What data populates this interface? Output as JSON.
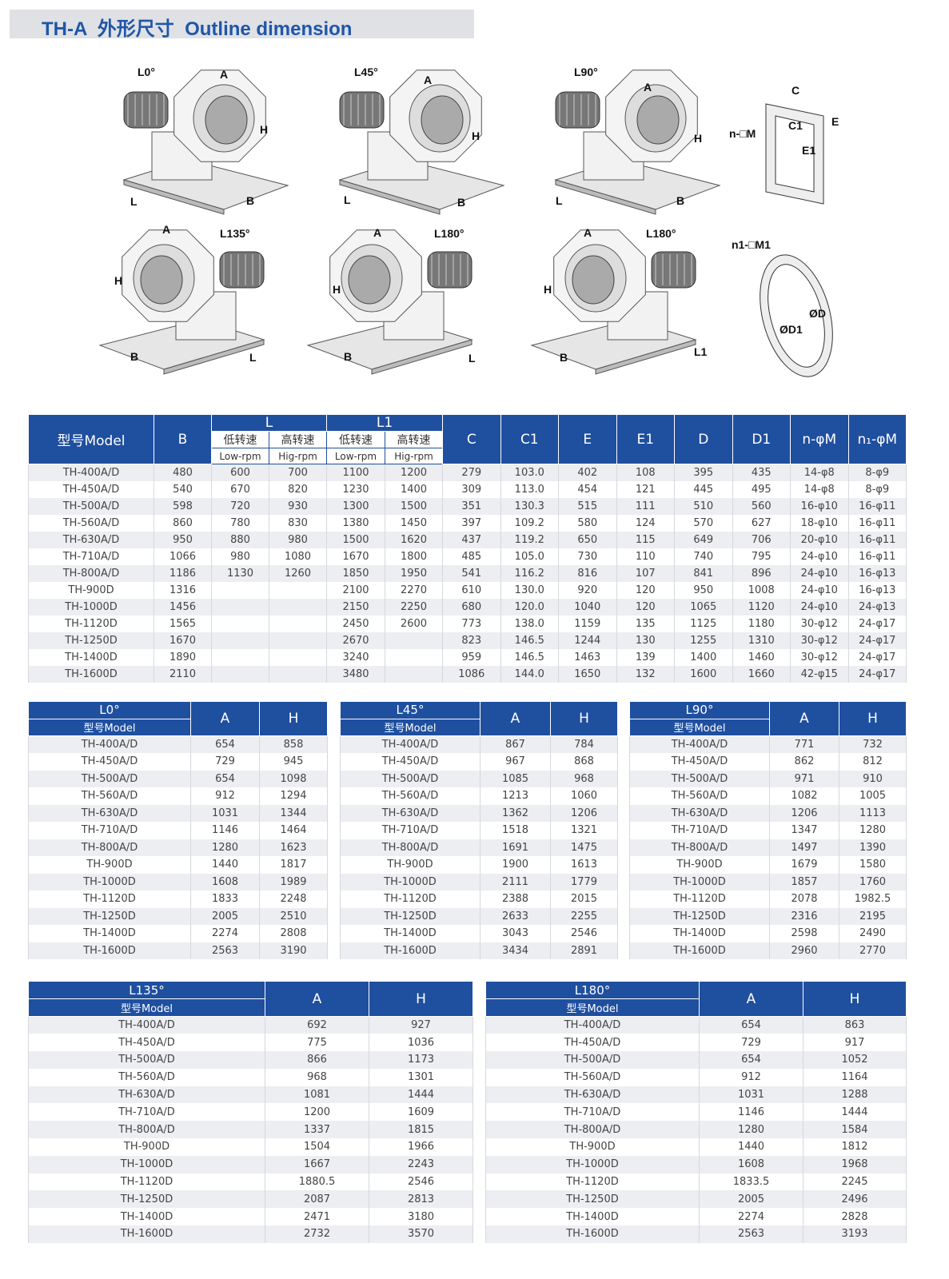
{
  "header": {
    "title": "TH-A  外形尺寸  Outline dimension"
  },
  "diagrams": [
    {
      "title": "L0°",
      "labels": [
        "A",
        "H",
        "L",
        "B"
      ]
    },
    {
      "title": "L45°",
      "labels": [
        "A",
        "H",
        "L",
        "B"
      ]
    },
    {
      "title": "L90°",
      "labels": [
        "A",
        "H",
        "L",
        "B"
      ]
    },
    {
      "labels": [
        "C",
        "E",
        "C1",
        "E1",
        "n-□M"
      ]
    },
    {
      "title": "L135°",
      "labels": [
        "A",
        "H",
        "B",
        "L"
      ]
    },
    {
      "title": "L180°",
      "labels": [
        "A",
        "H",
        "B",
        "L"
      ]
    },
    {
      "title": "L180°",
      "labels": [
        "A",
        "H",
        "B",
        "L1"
      ]
    },
    {
      "labels": [
        "n1-□M1",
        "ØD",
        "ØD1"
      ]
    }
  ],
  "main_table": {
    "header": {
      "model": "型号Model",
      "B": "B",
      "L": "L",
      "L1": "L1",
      "speed": [
        "低转速",
        "高转速",
        "低转速",
        "高转速"
      ],
      "rpm": [
        "Low-rpm",
        "Hig-rpm",
        "Low-rpm",
        "Hig-rpm"
      ],
      "cols": [
        "C",
        "C1",
        "E",
        "E1",
        "D",
        "D1",
        "n-φM",
        "n₁-φM"
      ]
    },
    "rows": [
      [
        "TH-400A/D",
        "480",
        "600",
        "700",
        "1100",
        "1200",
        "279",
        "103.0",
        "402",
        "108",
        "395",
        "435",
        "14-φ8",
        "8-φ9"
      ],
      [
        "TH-450A/D",
        "540",
        "670",
        "820",
        "1230",
        "1400",
        "309",
        "113.0",
        "454",
        "121",
        "445",
        "495",
        "14-φ8",
        "8-φ9"
      ],
      [
        "TH-500A/D",
        "598",
        "720",
        "930",
        "1300",
        "1500",
        "351",
        "130.3",
        "515",
        "111",
        "510",
        "560",
        "16-φ10",
        "16-φ11"
      ],
      [
        "TH-560A/D",
        "860",
        "780",
        "830",
        "1380",
        "1450",
        "397",
        "109.2",
        "580",
        "124",
        "570",
        "627",
        "18-φ10",
        "16-φ11"
      ],
      [
        "TH-630A/D",
        "950",
        "880",
        "980",
        "1500",
        "1620",
        "437",
        "119.2",
        "650",
        "115",
        "649",
        "706",
        "20-φ10",
        "16-φ11"
      ],
      [
        "TH-710A/D",
        "1066",
        "980",
        "1080",
        "1670",
        "1800",
        "485",
        "105.0",
        "730",
        "110",
        "740",
        "795",
        "24-φ10",
        "16-φ11"
      ],
      [
        "TH-800A/D",
        "1186",
        "1130",
        "1260",
        "1850",
        "1950",
        "541",
        "116.2",
        "816",
        "107",
        "841",
        "896",
        "24-φ10",
        "16-φ13"
      ],
      [
        "TH-900D",
        "1316",
        null,
        null,
        "2100",
        "2270",
        "610",
        "130.0",
        "920",
        "120",
        "950",
        "1008",
        "24-φ10",
        "16-φ13"
      ],
      [
        "TH-1000D",
        "1456",
        null,
        null,
        "2150",
        "2250",
        "680",
        "120.0",
        "1040",
        "120",
        "1065",
        "1120",
        "24-φ10",
        "24-φ13"
      ],
      [
        "TH-1120D",
        "1565",
        null,
        null,
        "2450",
        "2600",
        "773",
        "138.0",
        "1159",
        "135",
        "1125",
        "1180",
        "30-φ12",
        "24-φ17"
      ],
      [
        "TH-1250D",
        "1670",
        null,
        null,
        "2670",
        null,
        "823",
        "146.5",
        "1244",
        "130",
        "1255",
        "1310",
        "30-φ12",
        "24-φ17"
      ],
      [
        "TH-1400D",
        "1890",
        null,
        null,
        "3240",
        null,
        "959",
        "146.5",
        "1463",
        "139",
        "1400",
        "1460",
        "30-φ12",
        "24-φ17"
      ],
      [
        "TH-1600D",
        "2110",
        null,
        null,
        "3480",
        null,
        "1086",
        "144.0",
        "1650",
        "132",
        "1600",
        "1660",
        "42-φ15",
        "24-φ17"
      ]
    ]
  },
  "tables": [
    {
      "title": "L0°",
      "model": "型号Model",
      "cols": [
        "A",
        "H"
      ],
      "rows": [
        [
          "TH-400A/D",
          "654",
          "858"
        ],
        [
          "TH-450A/D",
          "729",
          "945"
        ],
        [
          "TH-500A/D",
          "654",
          "1098"
        ],
        [
          "TH-560A/D",
          "912",
          "1294"
        ],
        [
          "TH-630A/D",
          "1031",
          "1344"
        ],
        [
          "TH-710A/D",
          "1146",
          "1464"
        ],
        [
          "TH-800A/D",
          "1280",
          "1623"
        ],
        [
          "TH-900D",
          "1440",
          "1817"
        ],
        [
          "TH-1000D",
          "1608",
          "1989"
        ],
        [
          "TH-1120D",
          "1833",
          "2248"
        ],
        [
          "TH-1250D",
          "2005",
          "2510"
        ],
        [
          "TH-1400D",
          "2274",
          "2808"
        ],
        [
          "TH-1600D",
          "2563",
          "3190"
        ]
      ]
    },
    {
      "title": "L45°",
      "model": "型号Model",
      "cols": [
        "A",
        "H"
      ],
      "rows": [
        [
          "TH-400A/D",
          "867",
          "784"
        ],
        [
          "TH-450A/D",
          "967",
          "868"
        ],
        [
          "TH-500A/D",
          "1085",
          "968"
        ],
        [
          "TH-560A/D",
          "1213",
          "1060"
        ],
        [
          "TH-630A/D",
          "1362",
          "1206"
        ],
        [
          "TH-710A/D",
          "1518",
          "1321"
        ],
        [
          "TH-800A/D",
          "1691",
          "1475"
        ],
        [
          "TH-900D",
          "1900",
          "1613"
        ],
        [
          "TH-1000D",
          "2111",
          "1779"
        ],
        [
          "TH-1120D",
          "2388",
          "2015"
        ],
        [
          "TH-1250D",
          "2633",
          "2255"
        ],
        [
          "TH-1400D",
          "3043",
          "2546"
        ],
        [
          "TH-1600D",
          "3434",
          "2891"
        ]
      ]
    },
    {
      "title": "L90°",
      "model": "型号Model",
      "cols": [
        "A",
        "H"
      ],
      "rows": [
        [
          "TH-400A/D",
          "771",
          "732"
        ],
        [
          "TH-450A/D",
          "862",
          "812"
        ],
        [
          "TH-500A/D",
          "971",
          "910"
        ],
        [
          "TH-560A/D",
          "1082",
          "1005"
        ],
        [
          "TH-630A/D",
          "1206",
          "1113"
        ],
        [
          "TH-710A/D",
          "1347",
          "1280"
        ],
        [
          "TH-800A/D",
          "1497",
          "1390"
        ],
        [
          "TH-900D",
          "1679",
          "1580"
        ],
        [
          "TH-1000D",
          "1857",
          "1760"
        ],
        [
          "TH-1120D",
          "2078",
          "1982.5"
        ],
        [
          "TH-1250D",
          "2316",
          "2195"
        ],
        [
          "TH-1400D",
          "2598",
          "2490"
        ],
        [
          "TH-1600D",
          "2960",
          "2770"
        ]
      ]
    },
    {
      "title": "L135°",
      "model": "型号Model",
      "cols": [
        "A",
        "H"
      ],
      "rows": [
        [
          "TH-400A/D",
          "692",
          "927"
        ],
        [
          "TH-450A/D",
          "775",
          "1036"
        ],
        [
          "TH-500A/D",
          "866",
          "1173"
        ],
        [
          "TH-560A/D",
          "968",
          "1301"
        ],
        [
          "TH-630A/D",
          "1081",
          "1444"
        ],
        [
          "TH-710A/D",
          "1200",
          "1609"
        ],
        [
          "TH-800A/D",
          "1337",
          "1815"
        ],
        [
          "TH-900D",
          "1504",
          "1966"
        ],
        [
          "TH-1000D",
          "1667",
          "2243"
        ],
        [
          "TH-1120D",
          "1880.5",
          "2546"
        ],
        [
          "TH-1250D",
          "2087",
          "2813"
        ],
        [
          "TH-1400D",
          "2471",
          "3180"
        ],
        [
          "TH-1600D",
          "2732",
          "3570"
        ]
      ]
    },
    {
      "title": "L180°",
      "model": "型号Model",
      "cols": [
        "A",
        "H"
      ],
      "rows": [
        [
          "TH-400A/D",
          "654",
          "863"
        ],
        [
          "TH-450A/D",
          "729",
          "917"
        ],
        [
          "TH-500A/D",
          "654",
          "1052"
        ],
        [
          "TH-560A/D",
          "912",
          "1164"
        ],
        [
          "TH-630A/D",
          "1031",
          "1288"
        ],
        [
          "TH-710A/D",
          "1146",
          "1444"
        ],
        [
          "TH-800A/D",
          "1280",
          "1584"
        ],
        [
          "TH-900D",
          "1440",
          "1812"
        ],
        [
          "TH-1000D",
          "1608",
          "1968"
        ],
        [
          "TH-1120D",
          "1833.5",
          "2245"
        ],
        [
          "TH-1250D",
          "2005",
          "2496"
        ],
        [
          "TH-1400D",
          "2274",
          "2828"
        ],
        [
          "TH-1600D",
          "2563",
          "3193"
        ]
      ]
    }
  ]
}
